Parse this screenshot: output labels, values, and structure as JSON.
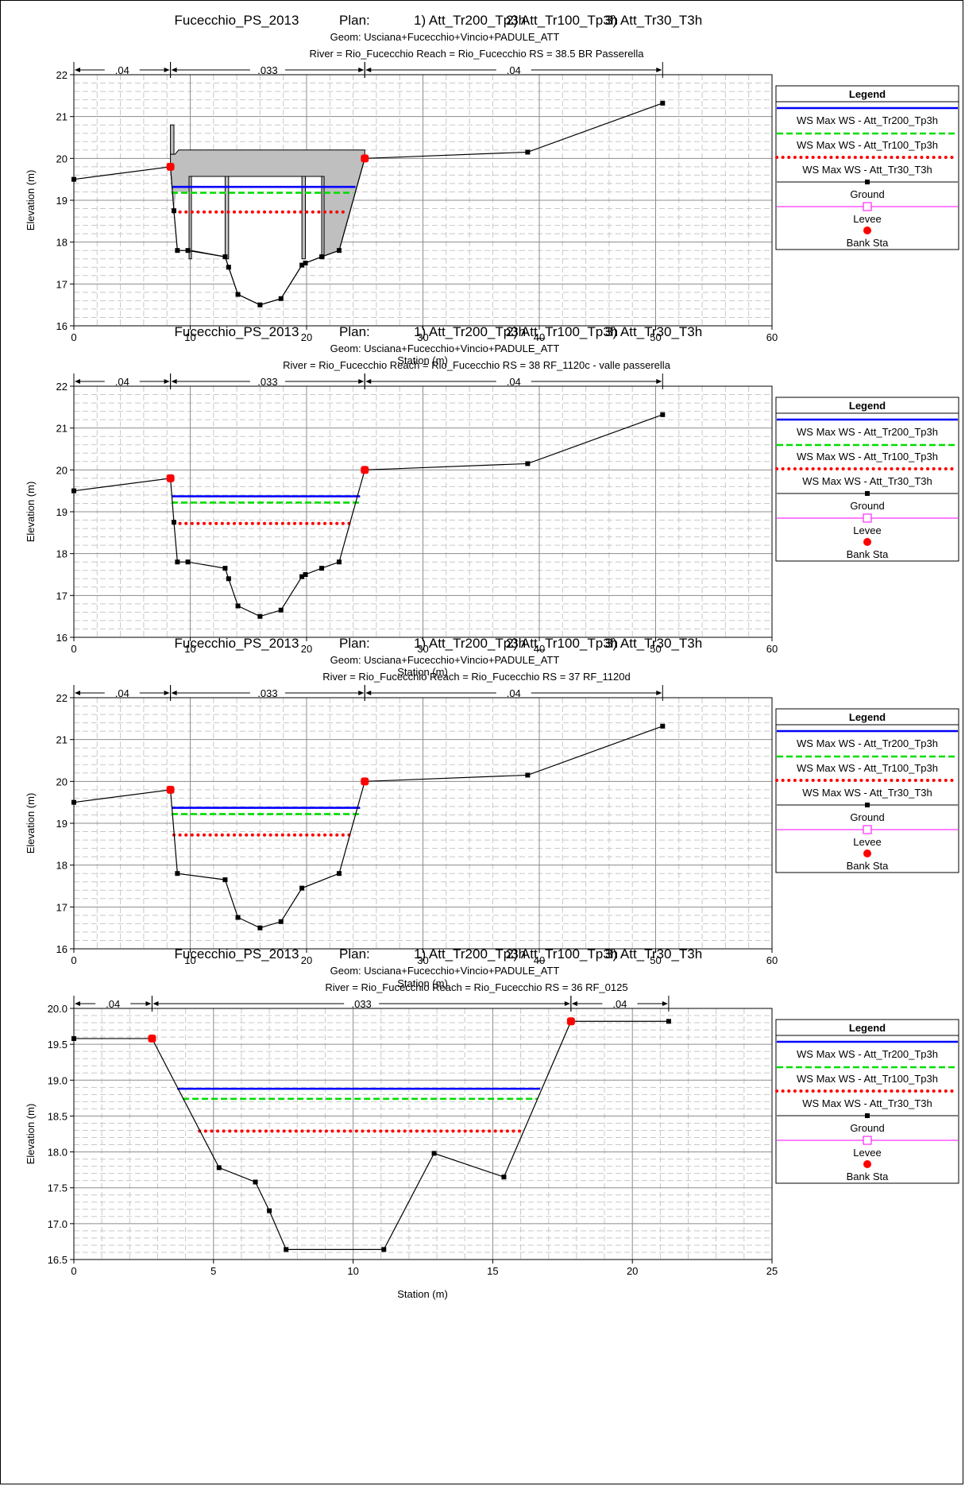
{
  "chart_data": [
    {
      "type": "line",
      "title": "Fucecchio_PS_2013",
      "plans_label": "Plan:",
      "plans": [
        "1) Att_Tr200_Tp3h",
        "2) Att_Tr100_Tp3h",
        "3) Att_Tr30_T3h"
      ],
      "geom": "Geom: Usciana+Fucecchio+Vincio+PADULE_ATT",
      "location": "River = Rio_Fucecchio   Reach = Rio_Fucecchio      RS = 38.5    BR  Passerella",
      "xlabel": "Station (m)",
      "ylabel": "Elevation (m)",
      "xlim": [
        0,
        60
      ],
      "ylim": [
        16,
        22
      ],
      "xticks": [
        "0",
        "10",
        "20",
        "30",
        "40",
        "50",
        "60"
      ],
      "yticks": [
        "16",
        "17",
        "18",
        "19",
        "20",
        "21",
        "22"
      ],
      "manning": [
        {
          "from": 0,
          "to": 8.3,
          "label": ".04"
        },
        {
          "from": 8.3,
          "to": 25,
          "label": ".033"
        },
        {
          "from": 25,
          "to": 50.6,
          "label": ".04"
        }
      ],
      "ground": [
        [
          0,
          19.5
        ],
        [
          8.3,
          19.8
        ],
        [
          8.6,
          18.75
        ],
        [
          8.9,
          17.8
        ],
        [
          9.8,
          17.8
        ],
        [
          13,
          17.65
        ],
        [
          13.3,
          17.4
        ],
        [
          14.1,
          16.75
        ],
        [
          16,
          16.5
        ],
        [
          17.8,
          16.65
        ],
        [
          19.6,
          17.45
        ],
        [
          19.9,
          17.5
        ],
        [
          21.3,
          17.65
        ],
        [
          22.8,
          17.8
        ],
        [
          25,
          20
        ],
        [
          39,
          20.15
        ],
        [
          50.6,
          21.32
        ]
      ],
      "bank_sta": [
        [
          8.3,
          19.8
        ],
        [
          25,
          20
        ]
      ],
      "ws": [
        {
          "series": 0,
          "elevation": 19.32,
          "from": 8.4,
          "to": 24.2
        },
        {
          "series": 1,
          "elevation": 19.18,
          "from": 8.4,
          "to": 24.0
        },
        {
          "series": 2,
          "elevation": 18.72,
          "from": 8.6,
          "to": 23.6
        }
      ],
      "bridge": {
        "deck": [
          [
            8.3,
            20.1
          ],
          [
            8.7,
            20.1
          ],
          [
            9.0,
            20.2
          ],
          [
            25,
            20.2
          ],
          [
            25,
            20
          ]
        ],
        "deck_bottom": 19.57,
        "rail": {
          "x": [
            8.3,
            8.6
          ],
          "top": 20.8
        },
        "piers": [
          {
            "x": [
              9.9,
              10.1
            ]
          },
          {
            "x": [
              13.0,
              13.3
            ]
          },
          {
            "x": [
              19.6,
              19.9
            ]
          },
          {
            "x": [
              21.3,
              21.5
            ]
          }
        ]
      },
      "legend": {
        "title": "Legend",
        "placement": "right",
        "entries": [
          {
            "label": "WS Max WS - Att_Tr200_Tp3h",
            "color": "#0000ff",
            "style": "solid"
          },
          {
            "label": "WS Max WS - Att_Tr100_Tp3h",
            "color": "#00dd00",
            "style": "dashed"
          },
          {
            "label": "WS Max WS - Att_Tr30_T3h",
            "color": "#ff0000",
            "style": "dotted"
          },
          {
            "label": "Ground",
            "color": "#000000",
            "style": "square-marker"
          },
          {
            "label": "Levee",
            "color": "#ff00ff",
            "style": "open-square"
          },
          {
            "label": "Bank Sta",
            "color": "#ff0000",
            "style": "dot"
          }
        ]
      }
    },
    {
      "type": "line",
      "title": "Fucecchio_PS_2013",
      "plans_label": "Plan:",
      "plans": [
        "1) Att_Tr200_Tp3h",
        "2) Att_Tr100_Tp3h",
        "3) Att_Tr30_T3h"
      ],
      "geom": "Geom: Usciana+Fucecchio+Vincio+PADULE_ATT",
      "location": "River = Rio_Fucecchio   Reach = Rio_Fucecchio      RS = 38   RF_1120c - valle passerella",
      "xlabel": "Station (m)",
      "ylabel": "Elevation (m)",
      "xlim": [
        0,
        60
      ],
      "ylim": [
        16,
        22
      ],
      "xticks": [
        "0",
        "10",
        "20",
        "30",
        "40",
        "50",
        "60"
      ],
      "yticks": [
        "16",
        "17",
        "18",
        "19",
        "20",
        "21",
        "22"
      ],
      "manning": [
        {
          "from": 0,
          "to": 8.3,
          "label": ".04"
        },
        {
          "from": 8.3,
          "to": 25,
          "label": ".033"
        },
        {
          "from": 25,
          "to": 50.6,
          "label": ".04"
        }
      ],
      "ground": [
        [
          0,
          19.5
        ],
        [
          8.3,
          19.8
        ],
        [
          8.6,
          18.75
        ],
        [
          8.9,
          17.8
        ],
        [
          9.8,
          17.8
        ],
        [
          13,
          17.65
        ],
        [
          13.3,
          17.4
        ],
        [
          14.1,
          16.75
        ],
        [
          16,
          16.5
        ],
        [
          17.8,
          16.65
        ],
        [
          19.6,
          17.45
        ],
        [
          19.9,
          17.5
        ],
        [
          21.3,
          17.65
        ],
        [
          22.8,
          17.8
        ],
        [
          25,
          20
        ],
        [
          39,
          20.15
        ],
        [
          50.6,
          21.32
        ]
      ],
      "bank_sta": [
        [
          8.3,
          19.8
        ],
        [
          25,
          20
        ]
      ],
      "ws": [
        {
          "series": 0,
          "elevation": 19.37,
          "from": 8.4,
          "to": 24.6
        },
        {
          "series": 1,
          "elevation": 19.22,
          "from": 8.4,
          "to": 24.5
        },
        {
          "series": 2,
          "elevation": 18.72,
          "from": 8.6,
          "to": 23.7
        }
      ],
      "legend": {
        "title": "Legend",
        "placement": "right",
        "entries": [
          {
            "label": "WS Max WS - Att_Tr200_Tp3h",
            "color": "#0000ff",
            "style": "solid"
          },
          {
            "label": "WS Max WS - Att_Tr100_Tp3h",
            "color": "#00dd00",
            "style": "dashed"
          },
          {
            "label": "WS Max WS - Att_Tr30_T3h",
            "color": "#ff0000",
            "style": "dotted"
          },
          {
            "label": "Ground",
            "color": "#000000",
            "style": "square-marker"
          },
          {
            "label": "Levee",
            "color": "#ff00ff",
            "style": "open-square"
          },
          {
            "label": "Bank Sta",
            "color": "#ff0000",
            "style": "dot"
          }
        ]
      }
    },
    {
      "type": "line",
      "title": "Fucecchio_PS_2013",
      "plans_label": "Plan:",
      "plans": [
        "1) Att_Tr200_Tp3h",
        "2) Att_Tr100_Tp3h",
        "3) Att_Tr30_T3h"
      ],
      "geom": "Geom: Usciana+Fucecchio+Vincio+PADULE_ATT",
      "location": "River = Rio_Fucecchio   Reach = Rio_Fucecchio      RS = 37   RF_1120d",
      "xlabel": "Station (m)",
      "ylabel": "Elevation (m)",
      "xlim": [
        0,
        60
      ],
      "ylim": [
        16,
        22
      ],
      "xticks": [
        "0",
        "10",
        "20",
        "30",
        "40",
        "50",
        "60"
      ],
      "yticks": [
        "16",
        "17",
        "18",
        "19",
        "20",
        "21",
        "22"
      ],
      "manning": [
        {
          "from": 0,
          "to": 8.3,
          "label": ".04"
        },
        {
          "from": 8.3,
          "to": 25,
          "label": ".033"
        },
        {
          "from": 25,
          "to": 50.6,
          "label": ".04"
        }
      ],
      "ground": [
        [
          0,
          19.5
        ],
        [
          8.3,
          19.8
        ],
        [
          8.9,
          17.8
        ],
        [
          13,
          17.65
        ],
        [
          14.1,
          16.75
        ],
        [
          16,
          16.5
        ],
        [
          17.8,
          16.65
        ],
        [
          19.6,
          17.45
        ],
        [
          22.8,
          17.8
        ],
        [
          25,
          20
        ],
        [
          39,
          20.15
        ],
        [
          50.6,
          21.32
        ]
      ],
      "bank_sta": [
        [
          8.3,
          19.8
        ],
        [
          25,
          20
        ]
      ],
      "ws": [
        {
          "series": 0,
          "elevation": 19.37,
          "from": 8.4,
          "to": 24.6
        },
        {
          "series": 1,
          "elevation": 19.22,
          "from": 8.4,
          "to": 24.5
        },
        {
          "series": 2,
          "elevation": 18.72,
          "from": 8.6,
          "to": 23.7
        }
      ],
      "legend": {
        "title": "Legend",
        "placement": "right",
        "entries": [
          {
            "label": "WS Max WS - Att_Tr200_Tp3h",
            "color": "#0000ff",
            "style": "solid"
          },
          {
            "label": "WS Max WS - Att_Tr100_Tp3h",
            "color": "#00dd00",
            "style": "dashed"
          },
          {
            "label": "WS Max WS - Att_Tr30_T3h",
            "color": "#ff0000",
            "style": "dotted"
          },
          {
            "label": "Ground",
            "color": "#000000",
            "style": "square-marker"
          },
          {
            "label": "Levee",
            "color": "#ff00ff",
            "style": "open-square"
          },
          {
            "label": "Bank Sta",
            "color": "#ff0000",
            "style": "dot"
          }
        ]
      }
    },
    {
      "type": "line",
      "title": "Fucecchio_PS_2013",
      "plans_label": "Plan:",
      "plans": [
        "1) Att_Tr200_Tp3h",
        "2) Att_Tr100_Tp3h",
        "3) Att_Tr30_T3h"
      ],
      "geom": "Geom: Usciana+Fucecchio+Vincio+PADULE_ATT",
      "location": "River = Rio_Fucecchio   Reach = Rio_Fucecchio      RS = 36   RF_0125",
      "xlabel": "Station (m)",
      "ylabel": "Elevation (m)",
      "xlim": [
        0,
        25
      ],
      "ylim": [
        16.5,
        20.0
      ],
      "xticks": [
        "0",
        "5",
        "10",
        "15",
        "20",
        "25"
      ],
      "yticks": [
        "16.5",
        "17.0",
        "17.5",
        "18.0",
        "18.5",
        "19.0",
        "19.5",
        "20.0"
      ],
      "manning": [
        {
          "from": 0,
          "to": 2.8,
          "label": ".04"
        },
        {
          "from": 2.8,
          "to": 17.8,
          "label": ".033"
        },
        {
          "from": 17.8,
          "to": 21.3,
          "label": ".04"
        }
      ],
      "ground": [
        [
          0,
          19.58
        ],
        [
          2.8,
          19.58
        ],
        [
          5.2,
          17.78
        ],
        [
          6.5,
          17.58
        ],
        [
          7.0,
          17.18
        ],
        [
          7.6,
          16.64
        ],
        [
          11.1,
          16.64
        ],
        [
          12.9,
          17.98
        ],
        [
          15.4,
          17.65
        ],
        [
          17.8,
          19.82
        ],
        [
          21.3,
          19.82
        ]
      ],
      "bank_sta": [
        [
          2.8,
          19.58
        ],
        [
          17.8,
          19.82
        ]
      ],
      "ws": [
        {
          "series": 0,
          "elevation": 18.88,
          "from": 3.7,
          "to": 16.7
        },
        {
          "series": 1,
          "elevation": 18.74,
          "from": 3.9,
          "to": 16.6
        },
        {
          "series": 2,
          "elevation": 18.29,
          "from": 4.5,
          "to": 16.0
        }
      ],
      "legend": {
        "title": "Legend",
        "placement": "right",
        "entries": [
          {
            "label": "WS Max WS - Att_Tr200_Tp3h",
            "color": "#0000ff",
            "style": "solid"
          },
          {
            "label": "WS Max WS - Att_Tr100_Tp3h",
            "color": "#00dd00",
            "style": "dashed"
          },
          {
            "label": "WS Max WS - Att_Tr30_T3h",
            "color": "#ff0000",
            "style": "dotted"
          },
          {
            "label": "Ground",
            "color": "#000000",
            "style": "square-marker"
          },
          {
            "label": "Levee",
            "color": "#ff00ff",
            "style": "open-square"
          },
          {
            "label": "Bank Sta",
            "color": "#ff0000",
            "style": "dot"
          }
        ]
      }
    }
  ]
}
